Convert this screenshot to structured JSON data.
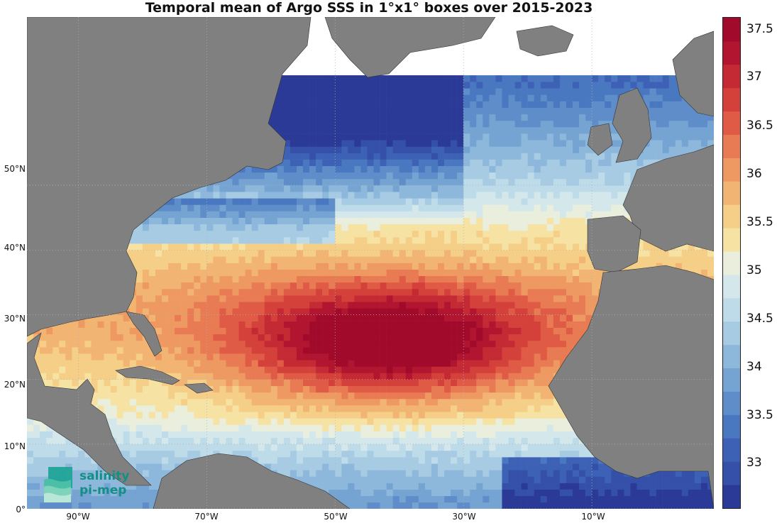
{
  "title": "Temporal mean of Argo SSS in 1°x1° boxes over 2015-2023",
  "map": {
    "lon_range": [
      -98,
      9
    ],
    "lat_range": [
      0,
      76
    ],
    "land_color": "#808080",
    "grid_style": "dotted"
  },
  "axes": {
    "lat_ticks": [
      {
        "value": 0,
        "label": "0°"
      },
      {
        "value": 10,
        "label": "10°N"
      },
      {
        "value": 20,
        "label": "20°N"
      },
      {
        "value": 30,
        "label": "30°N"
      },
      {
        "value": 40,
        "label": "40°N"
      },
      {
        "value": 50,
        "label": "50°N"
      }
    ],
    "lon_ticks": [
      {
        "value": -90,
        "label": "90°W"
      },
      {
        "value": -70,
        "label": "70°W"
      },
      {
        "value": -50,
        "label": "50°W"
      },
      {
        "value": -30,
        "label": "30°W"
      },
      {
        "value": -10,
        "label": "10°W"
      }
    ]
  },
  "colorbar": {
    "range": [
      32.5,
      37.7
    ],
    "labels": [
      {
        "value": 37.5,
        "label": "37.5"
      },
      {
        "value": 37,
        "label": "37"
      },
      {
        "value": 36.5,
        "label": "36.5"
      },
      {
        "value": 36,
        "label": "36"
      },
      {
        "value": 35.5,
        "label": "35.5"
      },
      {
        "value": 35,
        "label": "35"
      },
      {
        "value": 34.5,
        "label": "34.5"
      },
      {
        "value": 34,
        "label": "34"
      },
      {
        "value": 33.5,
        "label": "33.5"
      },
      {
        "value": 33,
        "label": "33"
      }
    ],
    "colors": [
      "#2b3a97",
      "#3450a8",
      "#3d61b5",
      "#4a78c0",
      "#5e8dc9",
      "#75a3d2",
      "#8db8dc",
      "#a6cbe3",
      "#bedbe9",
      "#d4e8ec",
      "#e9eedd",
      "#f6e3a4",
      "#f5cf87",
      "#f2b472",
      "#ee9961",
      "#e87b53",
      "#e05b45",
      "#d4403a",
      "#c42a34",
      "#b1152f",
      "#a10a2a"
    ]
  },
  "logo": {
    "line1": "salinity",
    "line2": "pi-mep",
    "color": "#148f86"
  }
}
